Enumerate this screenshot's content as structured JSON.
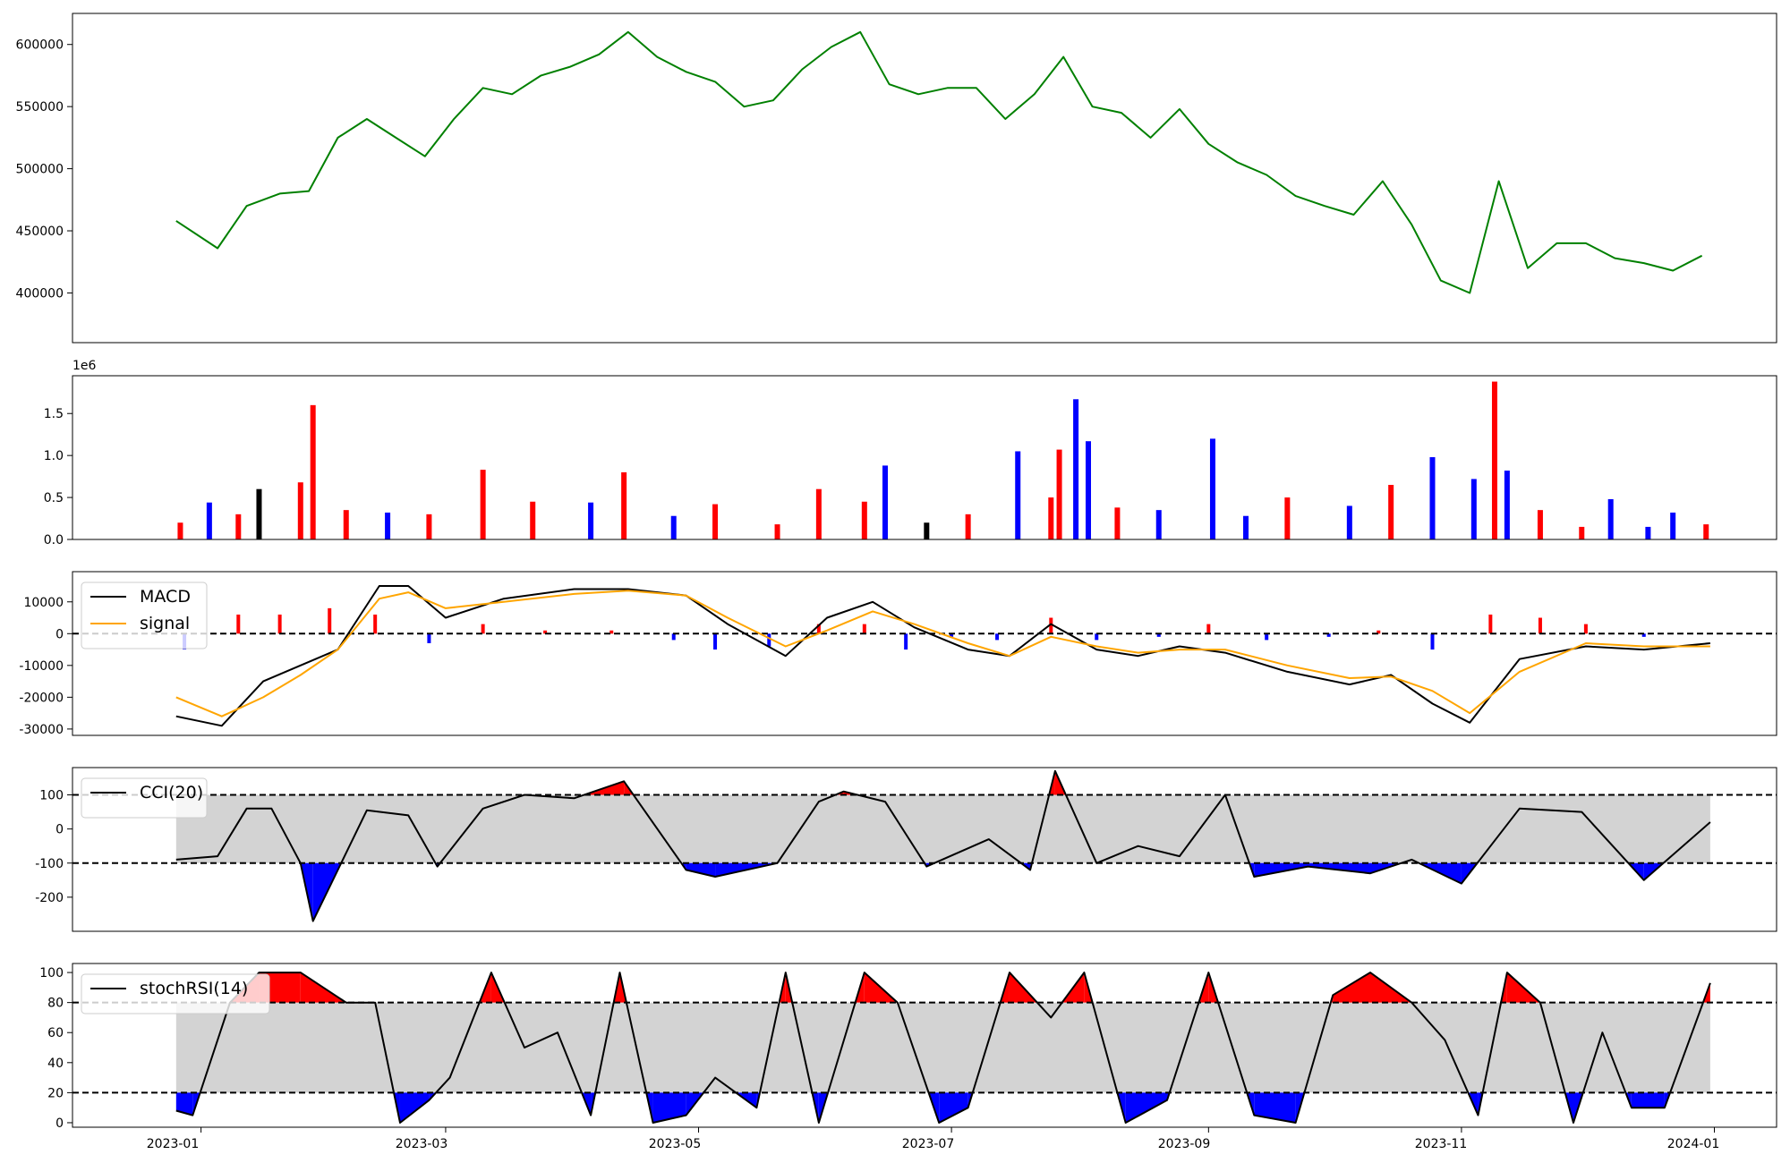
{
  "figure": {
    "x_tick_labels": [
      "2023-01",
      "2023-03",
      "2023-05",
      "2023-07",
      "2023-09",
      "2023-11",
      "2024-01"
    ]
  },
  "chart_data": [
    {
      "type": "line",
      "panel": "price",
      "x_range": [
        "2022-12-01",
        "2024-01-16"
      ],
      "ylim": [
        360000,
        625000
      ],
      "yticks": [
        400000,
        450000,
        500000,
        550000,
        600000
      ],
      "ytick_labels": [
        "400000",
        "450000",
        "500000",
        "550000",
        "600000"
      ],
      "line_color": "#008000",
      "series": [
        {
          "x": [
            "2022-12-26",
            "2023-01-05",
            "2023-01-12",
            "2023-01-20",
            "2023-01-27",
            "2023-02-03",
            "2023-02-10",
            "2023-02-17",
            "2023-02-24",
            "2023-03-03",
            "2023-03-10",
            "2023-03-17",
            "2023-03-24",
            "2023-03-31",
            "2023-04-07",
            "2023-04-14",
            "2023-04-21",
            "2023-04-28",
            "2023-05-05",
            "2023-05-12",
            "2023-05-19",
            "2023-05-26",
            "2023-06-02",
            "2023-06-09",
            "2023-06-16",
            "2023-06-23",
            "2023-06-30",
            "2023-07-07",
            "2023-07-14",
            "2023-07-21",
            "2023-07-28",
            "2023-08-04",
            "2023-08-11",
            "2023-08-18",
            "2023-08-25",
            "2023-09-01",
            "2023-09-08",
            "2023-09-15",
            "2023-09-22",
            "2023-09-29",
            "2023-10-06",
            "2023-10-13",
            "2023-10-20",
            "2023-10-27",
            "2023-11-03",
            "2023-11-10",
            "2023-11-17",
            "2023-11-24",
            "2023-12-01",
            "2023-12-08",
            "2023-12-15",
            "2023-12-22",
            "2023-12-29"
          ],
          "y": [
            458000,
            436000,
            470000,
            480000,
            482000,
            525000,
            540000,
            525000,
            510000,
            540000,
            565000,
            560000,
            575000,
            582000,
            592000,
            610000,
            590000,
            578000,
            570000,
            550000,
            555000,
            580000,
            598000,
            610000,
            568000,
            560000,
            565000,
            565000,
            540000,
            560000,
            590000,
            550000,
            545000,
            525000,
            548000,
            520000,
            505000,
            495000,
            478000,
            470000,
            463000,
            490000,
            455000,
            410000,
            400000,
            490000,
            420000,
            440000,
            440000,
            428000,
            424000,
            418000,
            430000
          ]
        }
      ]
    },
    {
      "type": "bar",
      "panel": "volume",
      "scale_label": "1e6",
      "ylim": [
        0,
        1.95
      ],
      "yticks": [
        0.0,
        0.5,
        1.0,
        1.5
      ],
      "ytick_labels": [
        "0.0",
        "0.5",
        "1.0",
        "1.5"
      ],
      "colors": {
        "up": "#ff0000",
        "down": "#0000ff",
        "flat": "#000000"
      },
      "bars": [
        {
          "x": "2022-12-27",
          "value": 0.2,
          "dir": "up"
        },
        {
          "x": "2023-01-03",
          "value": 0.44,
          "dir": "down"
        },
        {
          "x": "2023-01-10",
          "value": 0.3,
          "dir": "up"
        },
        {
          "x": "2023-01-15",
          "value": 0.6,
          "dir": "flat"
        },
        {
          "x": "2023-01-25",
          "value": 0.68,
          "dir": "up"
        },
        {
          "x": "2023-01-28",
          "value": 1.6,
          "dir": "up"
        },
        {
          "x": "2023-02-05",
          "value": 0.35,
          "dir": "up"
        },
        {
          "x": "2023-02-15",
          "value": 0.32,
          "dir": "down"
        },
        {
          "x": "2023-02-25",
          "value": 0.3,
          "dir": "up"
        },
        {
          "x": "2023-03-10",
          "value": 0.83,
          "dir": "up"
        },
        {
          "x": "2023-03-22",
          "value": 0.45,
          "dir": "up"
        },
        {
          "x": "2023-04-05",
          "value": 0.44,
          "dir": "down"
        },
        {
          "x": "2023-04-13",
          "value": 0.8,
          "dir": "up"
        },
        {
          "x": "2023-04-25",
          "value": 0.28,
          "dir": "down"
        },
        {
          "x": "2023-05-05",
          "value": 0.42,
          "dir": "up"
        },
        {
          "x": "2023-05-20",
          "value": 0.18,
          "dir": "up"
        },
        {
          "x": "2023-05-30",
          "value": 0.6,
          "dir": "up"
        },
        {
          "x": "2023-06-10",
          "value": 0.45,
          "dir": "up"
        },
        {
          "x": "2023-06-15",
          "value": 0.88,
          "dir": "down"
        },
        {
          "x": "2023-06-25",
          "value": 0.2,
          "dir": "flat"
        },
        {
          "x": "2023-07-05",
          "value": 0.3,
          "dir": "up"
        },
        {
          "x": "2023-07-17",
          "value": 1.05,
          "dir": "down"
        },
        {
          "x": "2023-07-25",
          "value": 0.5,
          "dir": "up"
        },
        {
          "x": "2023-07-27",
          "value": 1.07,
          "dir": "up"
        },
        {
          "x": "2023-07-31",
          "value": 1.67,
          "dir": "down"
        },
        {
          "x": "2023-08-03",
          "value": 1.17,
          "dir": "down"
        },
        {
          "x": "2023-08-10",
          "value": 0.38,
          "dir": "up"
        },
        {
          "x": "2023-08-20",
          "value": 0.35,
          "dir": "down"
        },
        {
          "x": "2023-09-02",
          "value": 1.2,
          "dir": "down"
        },
        {
          "x": "2023-09-10",
          "value": 0.28,
          "dir": "down"
        },
        {
          "x": "2023-09-20",
          "value": 0.5,
          "dir": "up"
        },
        {
          "x": "2023-10-05",
          "value": 0.4,
          "dir": "down"
        },
        {
          "x": "2023-10-15",
          "value": 0.65,
          "dir": "up"
        },
        {
          "x": "2023-10-25",
          "value": 0.98,
          "dir": "down"
        },
        {
          "x": "2023-11-04",
          "value": 0.72,
          "dir": "down"
        },
        {
          "x": "2023-11-09",
          "value": 1.88,
          "dir": "up"
        },
        {
          "x": "2023-11-12",
          "value": 0.82,
          "dir": "down"
        },
        {
          "x": "2023-11-20",
          "value": 0.35,
          "dir": "up"
        },
        {
          "x": "2023-11-30",
          "value": 0.15,
          "dir": "up"
        },
        {
          "x": "2023-12-07",
          "value": 0.48,
          "dir": "down"
        },
        {
          "x": "2023-12-16",
          "value": 0.15,
          "dir": "down"
        },
        {
          "x": "2023-12-22",
          "value": 0.32,
          "dir": "down"
        },
        {
          "x": "2023-12-30",
          "value": 0.18,
          "dir": "up"
        }
      ]
    },
    {
      "type": "line",
      "panel": "macd",
      "ylim": [
        -32000,
        19500
      ],
      "yticks": [
        -30000,
        -20000,
        -10000,
        0,
        10000
      ],
      "ytick_labels": [
        "-30000",
        "-20000",
        "-10000",
        "0",
        "10000"
      ],
      "zero_line": 0,
      "legend": {
        "position": "upper-left",
        "entries": [
          {
            "label": "MACD",
            "color": "#000000"
          },
          {
            "label": "signal",
            "color": "#ffa500"
          }
        ]
      },
      "hist_colors": {
        "positive": "#ff0000",
        "negative": "#0000ff"
      },
      "series": [
        {
          "name": "MACD",
          "color": "#000000",
          "x": [
            "2022-12-26",
            "2023-01-06",
            "2023-01-16",
            "2023-01-25",
            "2023-02-03",
            "2023-02-13",
            "2023-02-20",
            "2023-03-01",
            "2023-03-15",
            "2023-04-01",
            "2023-04-14",
            "2023-04-28",
            "2023-05-08",
            "2023-05-22",
            "2023-06-01",
            "2023-06-12",
            "2023-06-22",
            "2023-07-05",
            "2023-07-15",
            "2023-07-25",
            "2023-08-05",
            "2023-08-15",
            "2023-08-25",
            "2023-09-05",
            "2023-09-20",
            "2023-10-05",
            "2023-10-15",
            "2023-10-25",
            "2023-11-03",
            "2023-11-15",
            "2023-12-01",
            "2023-12-15",
            "2023-12-31"
          ],
          "y": [
            -26000,
            -29000,
            -15000,
            -10000,
            -5000,
            15000,
            15000,
            5000,
            11000,
            14000,
            14000,
            12000,
            3000,
            -7000,
            5000,
            10000,
            2000,
            -5000,
            -7000,
            3000,
            -5000,
            -7000,
            -4000,
            -6000,
            -12000,
            -16000,
            -13000,
            -22000,
            -28000,
            -8000,
            -4000,
            -5000,
            -3000
          ]
        },
        {
          "name": "signal",
          "color": "#ffa500",
          "x": [
            "2022-12-26",
            "2023-01-06",
            "2023-01-16",
            "2023-01-25",
            "2023-02-03",
            "2023-02-13",
            "2023-02-20",
            "2023-03-01",
            "2023-03-15",
            "2023-04-01",
            "2023-04-14",
            "2023-04-28",
            "2023-05-08",
            "2023-05-22",
            "2023-06-01",
            "2023-06-12",
            "2023-06-22",
            "2023-07-05",
            "2023-07-15",
            "2023-07-25",
            "2023-08-05",
            "2023-08-15",
            "2023-08-25",
            "2023-09-05",
            "2023-09-20",
            "2023-10-05",
            "2023-10-15",
            "2023-10-25",
            "2023-11-03",
            "2023-11-15",
            "2023-12-01",
            "2023-12-15",
            "2023-12-31"
          ],
          "y": [
            -20000,
            -26000,
            -20000,
            -13000,
            -5000,
            11000,
            13000,
            8000,
            10000,
            12500,
            13500,
            12000,
            5000,
            -4000,
            1000,
            7000,
            3000,
            -3000,
            -7000,
            -1000,
            -4000,
            -6000,
            -5000,
            -5000,
            -10000,
            -14000,
            -13500,
            -18000,
            -25000,
            -12000,
            -3000,
            -4000,
            -4000
          ]
        }
      ],
      "histogram": {
        "x": [
          "2022-12-28",
          "2023-01-10",
          "2023-01-20",
          "2023-02-01",
          "2023-02-12",
          "2023-02-25",
          "2023-03-10",
          "2023-03-25",
          "2023-04-10",
          "2023-04-25",
          "2023-05-05",
          "2023-05-18",
          "2023-05-30",
          "2023-06-10",
          "2023-06-20",
          "2023-07-01",
          "2023-07-12",
          "2023-07-25",
          "2023-08-05",
          "2023-08-20",
          "2023-09-01",
          "2023-09-15",
          "2023-09-30",
          "2023-10-12",
          "2023-10-25",
          "2023-11-08",
          "2023-11-20",
          "2023-12-01",
          "2023-12-15"
        ],
        "y": [
          -5000,
          6000,
          6000,
          8000,
          6000,
          -3000,
          3000,
          1000,
          1000,
          -2000,
          -5000,
          -4000,
          3000,
          3000,
          -5000,
          -1000,
          -2000,
          5000,
          -2000,
          -1000,
          3000,
          -2000,
          -1000,
          1000,
          -5000,
          6000,
          5000,
          3000,
          -1000
        ]
      }
    },
    {
      "type": "line",
      "panel": "cci",
      "ylim": [
        -300,
        180
      ],
      "yticks": [
        -200,
        -100,
        0,
        100
      ],
      "ytick_labels": [
        "-200",
        "-100",
        "0",
        "100"
      ],
      "band": [
        -100,
        100
      ],
      "band_color": "#d3d3d3",
      "legend": {
        "position": "upper-left",
        "entries": [
          {
            "label": "CCI(20)",
            "color": "#000000"
          }
        ]
      },
      "series": [
        {
          "name": "CCI(20)",
          "color": "#000000",
          "x": [
            "2022-12-26",
            "2023-01-05",
            "2023-01-12",
            "2023-01-18",
            "2023-01-25",
            "2023-01-28",
            "2023-02-10",
            "2023-02-20",
            "2023-02-27",
            "2023-03-10",
            "2023-03-20",
            "2023-04-01",
            "2023-04-13",
            "2023-04-28",
            "2023-05-05",
            "2023-05-20",
            "2023-05-30",
            "2023-06-05",
            "2023-06-15",
            "2023-06-25",
            "2023-07-10",
            "2023-07-20",
            "2023-07-26",
            "2023-08-05",
            "2023-08-15",
            "2023-08-25",
            "2023-09-05",
            "2023-09-12",
            "2023-09-25",
            "2023-10-10",
            "2023-10-20",
            "2023-11-01",
            "2023-11-15",
            "2023-11-30",
            "2023-12-15",
            "2023-12-31"
          ],
          "y": [
            -90,
            -80,
            60,
            60,
            -100,
            -270,
            55,
            40,
            -110,
            60,
            100,
            90,
            140,
            -120,
            -140,
            -100,
            80,
            110,
            80,
            -110,
            -30,
            -120,
            170,
            -100,
            -50,
            -80,
            100,
            -140,
            -110,
            -130,
            -90,
            -160,
            60,
            50,
            -150,
            20
          ]
        }
      ]
    },
    {
      "type": "line",
      "panel": "stochrsi",
      "ylim": [
        -3,
        106
      ],
      "yticks": [
        0,
        20,
        40,
        60,
        80,
        100
      ],
      "ytick_labels": [
        "0",
        "20",
        "40",
        "60",
        "80",
        "100"
      ],
      "band": [
        20,
        80
      ],
      "band_color": "#d3d3d3",
      "legend": {
        "position": "upper-left",
        "entries": [
          {
            "label": "stochRSI(14)",
            "color": "#000000"
          }
        ]
      },
      "series": [
        {
          "name": "stochRSI(14)",
          "color": "#000000",
          "x": [
            "2022-12-26",
            "2022-12-30",
            "2023-01-08",
            "2023-01-15",
            "2023-01-25",
            "2023-02-05",
            "2023-02-12",
            "2023-02-18",
            "2023-02-25",
            "2023-03-02",
            "2023-03-12",
            "2023-03-20",
            "2023-03-28",
            "2023-04-05",
            "2023-04-12",
            "2023-04-20",
            "2023-04-28",
            "2023-05-05",
            "2023-05-15",
            "2023-05-22",
            "2023-05-30",
            "2023-06-10",
            "2023-06-18",
            "2023-06-28",
            "2023-07-05",
            "2023-07-15",
            "2023-07-25",
            "2023-08-02",
            "2023-08-12",
            "2023-08-22",
            "2023-09-01",
            "2023-09-12",
            "2023-09-22",
            "2023-10-01",
            "2023-10-10",
            "2023-10-20",
            "2023-10-28",
            "2023-11-05",
            "2023-11-12",
            "2023-11-20",
            "2023-11-28",
            "2023-12-05",
            "2023-12-12",
            "2023-12-20",
            "2023-12-31"
          ],
          "y": [
            8,
            5,
            80,
            100,
            100,
            80,
            80,
            0,
            15,
            30,
            100,
            50,
            60,
            5,
            100,
            0,
            5,
            30,
            10,
            100,
            0,
            100,
            80,
            0,
            10,
            100,
            70,
            100,
            0,
            15,
            100,
            5,
            0,
            85,
            100,
            80,
            55,
            5,
            100,
            80,
            0,
            60,
            10,
            10,
            93
          ]
        }
      ]
    }
  ]
}
